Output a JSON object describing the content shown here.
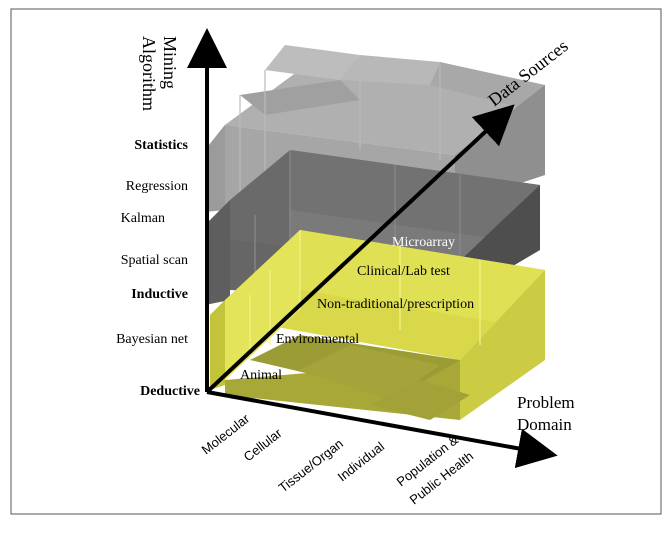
{
  "axes": {
    "y_label_line1": "Mining",
    "y_label_line2": "Algorithm",
    "z_label": "Data Sources",
    "x_label_line1": "Problem",
    "x_label_line2": "Domain"
  },
  "algorithm_levels": [
    {
      "label": "Statistics",
      "bold": true
    },
    {
      "label": "Regression",
      "bold": false
    },
    {
      "label": "Kalman",
      "bold": false
    },
    {
      "label": "Spatial scan",
      "bold": false
    },
    {
      "label": "Inductive",
      "bold": true
    },
    {
      "label": "Bayesian net",
      "bold": false
    },
    {
      "label": "Deductive",
      "bold": true
    }
  ],
  "data_sources": [
    "Animal",
    "Environmental",
    "Non-traditional/prescription",
    "Clinical/Lab test",
    "Microarray"
  ],
  "problem_domains": [
    "Molecular",
    "Cellular",
    "Tissue/Organ",
    "Individual",
    "Population &",
    "Public Health"
  ],
  "colors": {
    "top_layer": "#a6a6a6",
    "middle_layer": "#6e6e6e",
    "bottom_layer": "#e6e64a",
    "axis": "#000000"
  }
}
